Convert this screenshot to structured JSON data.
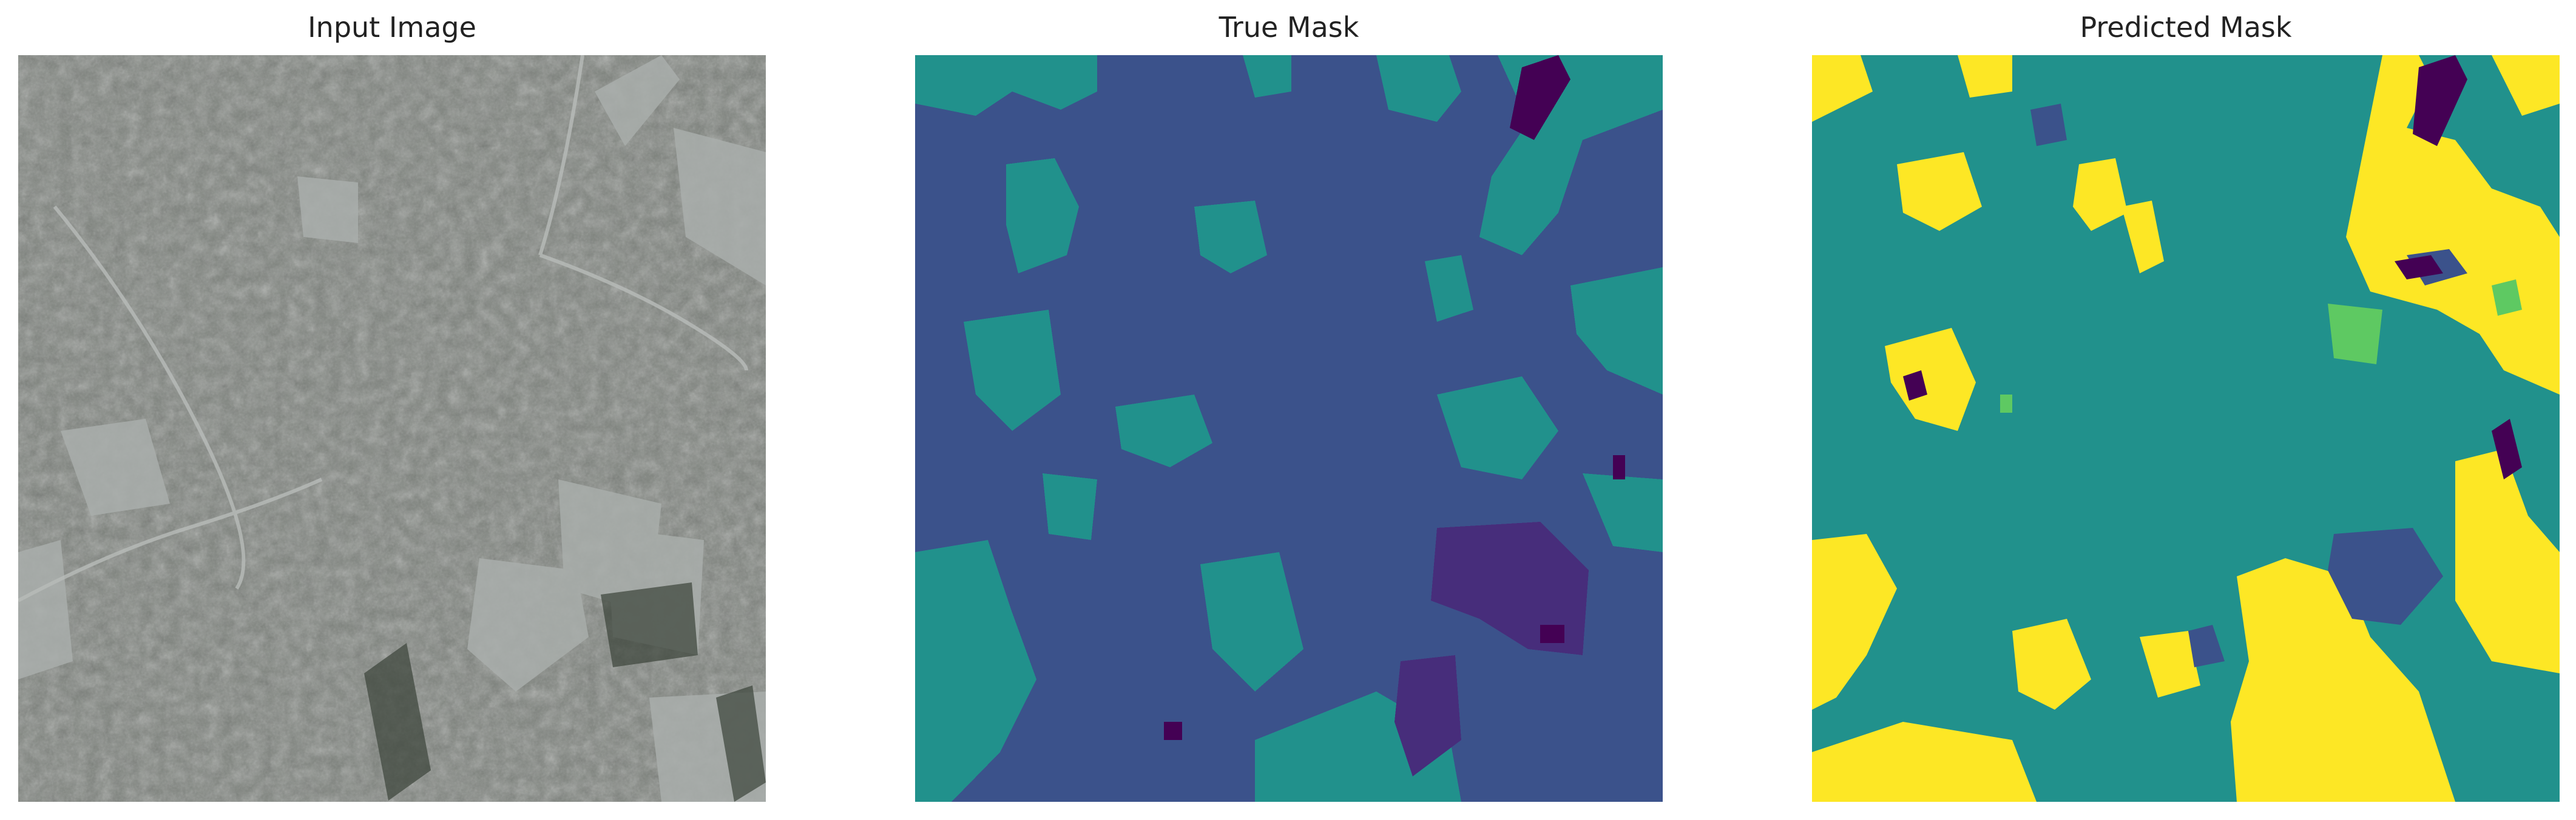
{
  "figure": {
    "panels": [
      {
        "title": "Input Image",
        "kind": "satellite photo"
      },
      {
        "title": "True Mask",
        "kind": "segmentation mask"
      },
      {
        "title": "Predicted Mask",
        "kind": "segmentation mask"
      }
    ]
  },
  "colors": {
    "background": "#ffffff",
    "title_text": "#222222",
    "photo_base": "#7c817b",
    "photo_light": "#a6aaa7",
    "photo_dark": "#4c544a",
    "mask_class_0": "#440154",
    "mask_class_1": "#3b528b",
    "mask_class_2": "#21918c",
    "mask_class_3": "#5ec962",
    "mask_class_4": "#fde725"
  }
}
